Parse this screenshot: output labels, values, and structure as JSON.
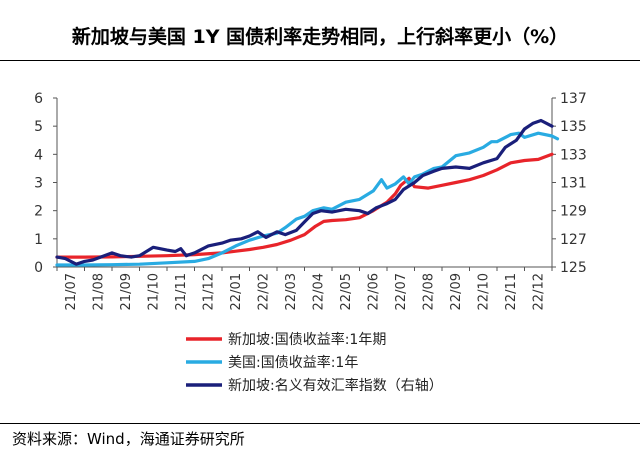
{
  "title": "新加坡与美国 1Y 国债利率走势相同，上行斜率更小（%）",
  "source": "资料来源：Wind，海通证券研究所",
  "chart_data": {
    "type": "line",
    "title": "新加坡与美国 1Y 国债利率走势相同，上行斜率更小（%）",
    "categories": [
      "21/07",
      "21/08",
      "21/09",
      "21/10",
      "21/11",
      "21/12",
      "22/01",
      "22/02",
      "22/03",
      "22/04",
      "22/05",
      "22/06",
      "22/07",
      "22/08",
      "22/09",
      "22/10",
      "22/11",
      "22/12"
    ],
    "y_left": {
      "min": 0,
      "max": 6,
      "ticks": [
        "0",
        "1",
        "2",
        "3",
        "4",
        "5",
        "6"
      ]
    },
    "y_right": {
      "min": 125,
      "max": 137,
      "ticks": [
        "125",
        "127",
        "129",
        "131",
        "133",
        "135",
        "137"
      ]
    },
    "grid": false,
    "legend_position": "bottom",
    "series": [
      {
        "name": "新加坡:国债收益率:1年期",
        "color": "#e8242a",
        "axis": "left",
        "points": [
          [
            0,
            0.35
          ],
          [
            1,
            0.35
          ],
          [
            2,
            0.36
          ],
          [
            3,
            0.38
          ],
          [
            4,
            0.4
          ],
          [
            5,
            0.44
          ],
          [
            6,
            0.5
          ],
          [
            6.5,
            0.56
          ],
          [
            7,
            0.62
          ],
          [
            7.5,
            0.7
          ],
          [
            8,
            0.8
          ],
          [
            8.5,
            0.95
          ],
          [
            9,
            1.15
          ],
          [
            9.4,
            1.45
          ],
          [
            9.7,
            1.62
          ],
          [
            10,
            1.65
          ],
          [
            10.5,
            1.68
          ],
          [
            11,
            1.75
          ],
          [
            11.5,
            2.0
          ],
          [
            12,
            2.3
          ],
          [
            12.3,
            2.6
          ],
          [
            12.5,
            2.9
          ],
          [
            12.8,
            3.15
          ],
          [
            13,
            2.85
          ],
          [
            13.5,
            2.8
          ],
          [
            14,
            2.9
          ],
          [
            14.5,
            3.0
          ],
          [
            15,
            3.1
          ],
          [
            15.5,
            3.25
          ],
          [
            16,
            3.45
          ],
          [
            16.5,
            3.7
          ],
          [
            17,
            3.78
          ],
          [
            17.5,
            3.82
          ],
          [
            18,
            4.0
          ]
        ]
      },
      {
        "name": "美国:国债收益率:1年",
        "color": "#29abe2",
        "axis": "left",
        "points": [
          [
            0,
            0.07
          ],
          [
            1,
            0.07
          ],
          [
            2,
            0.08
          ],
          [
            3,
            0.1
          ],
          [
            4,
            0.15
          ],
          [
            5,
            0.2
          ],
          [
            5.5,
            0.3
          ],
          [
            6,
            0.5
          ],
          [
            6.5,
            0.75
          ],
          [
            7,
            0.95
          ],
          [
            7.5,
            1.1
          ],
          [
            8,
            1.2
          ],
          [
            8.3,
            1.4
          ],
          [
            8.7,
            1.7
          ],
          [
            9,
            1.8
          ],
          [
            9.3,
            2.0
          ],
          [
            9.7,
            2.1
          ],
          [
            10,
            2.05
          ],
          [
            10.5,
            2.3
          ],
          [
            11,
            2.4
          ],
          [
            11.5,
            2.7
          ],
          [
            11.8,
            3.1
          ],
          [
            12,
            2.8
          ],
          [
            12.3,
            2.95
          ],
          [
            12.6,
            3.2
          ],
          [
            12.8,
            2.95
          ],
          [
            13,
            3.2
          ],
          [
            13.3,
            3.3
          ],
          [
            13.7,
            3.5
          ],
          [
            14,
            3.55
          ],
          [
            14.5,
            3.95
          ],
          [
            15,
            4.05
          ],
          [
            15.5,
            4.25
          ],
          [
            15.8,
            4.45
          ],
          [
            16,
            4.45
          ],
          [
            16.5,
            4.7
          ],
          [
            16.8,
            4.75
          ],
          [
            17,
            4.6
          ],
          [
            17.5,
            4.75
          ],
          [
            18,
            4.65
          ],
          [
            18.2,
            4.55
          ]
        ]
      },
      {
        "name": "新加坡:名义有效汇率指数（右轴）",
        "color": "#1a1f7a",
        "axis": "right",
        "points": [
          [
            0,
            125.7
          ],
          [
            0.3,
            125.6
          ],
          [
            0.7,
            125.2
          ],
          [
            1,
            125.4
          ],
          [
            1.3,
            125.5
          ],
          [
            2,
            126.0
          ],
          [
            2.3,
            125.8
          ],
          [
            2.7,
            125.7
          ],
          [
            3,
            125.8
          ],
          [
            3.5,
            126.4
          ],
          [
            4,
            126.2
          ],
          [
            4.3,
            126.1
          ],
          [
            4.5,
            126.3
          ],
          [
            4.7,
            125.8
          ],
          [
            5,
            126.0
          ],
          [
            5.5,
            126.5
          ],
          [
            6,
            126.7
          ],
          [
            6.3,
            126.9
          ],
          [
            6.7,
            127.0
          ],
          [
            7,
            127.2
          ],
          [
            7.3,
            127.5
          ],
          [
            7.6,
            127.1
          ],
          [
            8,
            127.5
          ],
          [
            8.3,
            127.3
          ],
          [
            8.7,
            127.6
          ],
          [
            9,
            128.2
          ],
          [
            9.3,
            128.8
          ],
          [
            9.6,
            129.0
          ],
          [
            10,
            128.9
          ],
          [
            10.5,
            129.1
          ],
          [
            11,
            129.0
          ],
          [
            11.3,
            128.8
          ],
          [
            11.6,
            129.2
          ],
          [
            12,
            129.5
          ],
          [
            12.3,
            129.8
          ],
          [
            12.6,
            130.5
          ],
          [
            13,
            131.0
          ],
          [
            13.3,
            131.5
          ],
          [
            13.7,
            131.8
          ],
          [
            14,
            132.0
          ],
          [
            14.5,
            132.1
          ],
          [
            15,
            132.0
          ],
          [
            15.5,
            132.4
          ],
          [
            16,
            132.7
          ],
          [
            16.3,
            133.5
          ],
          [
            16.7,
            134.0
          ],
          [
            17,
            134.8
          ],
          [
            17.3,
            135.2
          ],
          [
            17.6,
            135.4
          ],
          [
            18,
            135.0
          ]
        ]
      }
    ]
  }
}
